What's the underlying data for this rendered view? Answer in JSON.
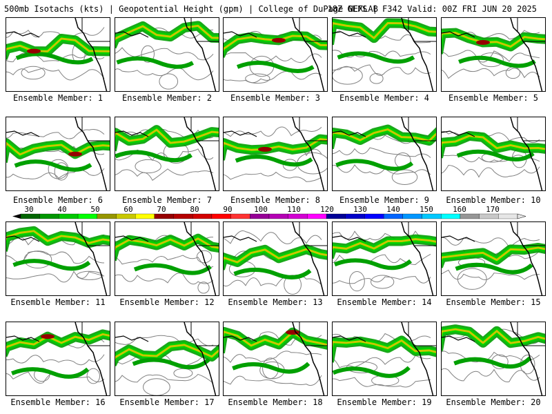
{
  "header": {
    "left": "500mb Isotachs (kts) | Geopotential Height (gpm) | College of DuPage NEXLAB",
    "right": "18Z GEFS | F342 Valid: 00Z FRI JUN 20 2025"
  },
  "members": [
    "Ensemble Member: 1",
    "Ensemble Member: 2",
    "Ensemble Member: 3",
    "Ensemble Member: 4",
    "Ensemble Member: 5",
    "Ensemble Member: 6",
    "Ensemble Member: 7",
    "Ensemble Member: 8",
    "Ensemble Member: 9",
    "Ensemble Member: 10",
    "Ensemble Member: 11",
    "Ensemble Member: 12",
    "Ensemble Member: 13",
    "Ensemble Member: 14",
    "Ensemble Member: 15",
    "Ensemble Member: 16",
    "Ensemble Member: 17",
    "Ensemble Member: 18",
    "Ensemble Member: 19",
    "Ensemble Member: 20"
  ],
  "legend": {
    "ticks": [
      "30",
      "40",
      "50",
      "60",
      "70",
      "80",
      "90",
      "100",
      "110",
      "120",
      "130",
      "140",
      "150",
      "160",
      "170"
    ],
    "colors": [
      "#006400",
      "#009600",
      "#00c800",
      "#00ff00",
      "#969600",
      "#c8c800",
      "#ffff00",
      "#960000",
      "#b40000",
      "#d20000",
      "#ff0000",
      "#ff3232",
      "#960096",
      "#b400b4",
      "#d200d2",
      "#ff00ff",
      "#000096",
      "#0000c8",
      "#0000ff",
      "#0064ff",
      "#0096ff",
      "#00c8ff",
      "#00ffff",
      "#969696",
      "#c8c8c8",
      "#e6e6e6"
    ]
  },
  "colors": {
    "jet_weak": "#00a000",
    "jet_mid": "#00d200",
    "jet_strong": "#c8c800",
    "jet_core": "#960000",
    "height_contour": "#808080",
    "coastline": "#000000"
  }
}
